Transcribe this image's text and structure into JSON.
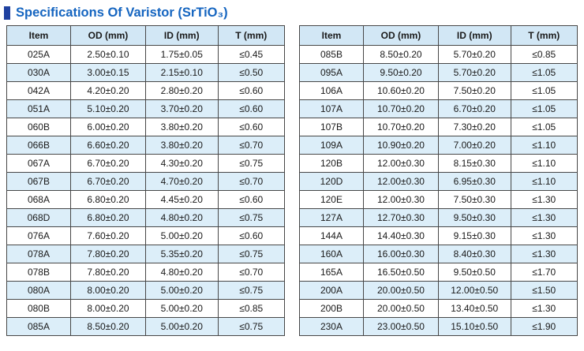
{
  "page": {
    "title": "Specifications Of Varistor (SrTiO₃)"
  },
  "columns": [
    "Item",
    "OD (mm)",
    "ID (mm)",
    "T (mm)"
  ],
  "tables": [
    {
      "name": "left",
      "rows": [
        [
          "025A",
          "2.50±0.10",
          "1.75±0.05",
          "≤0.45"
        ],
        [
          "030A",
          "3.00±0.15",
          "2.15±0.10",
          "≤0.50"
        ],
        [
          "042A",
          "4.20±0.20",
          "2.80±0.20",
          "≤0.60"
        ],
        [
          "051A",
          "5.10±0.20",
          "3.70±0.20",
          "≤0.60"
        ],
        [
          "060B",
          "6.00±0.20",
          "3.80±0.20",
          "≤0.60"
        ],
        [
          "066B",
          "6.60±0.20",
          "3.80±0.20",
          "≤0.70"
        ],
        [
          "067A",
          "6.70±0.20",
          "4.30±0.20",
          "≤0.75"
        ],
        [
          "067B",
          "6.70±0.20",
          "4.70±0.20",
          "≤0.70"
        ],
        [
          "068A",
          "6.80±0.20",
          "4.45±0.20",
          "≤0.60"
        ],
        [
          "068D",
          "6.80±0.20",
          "4.80±0.20",
          "≤0.75"
        ],
        [
          "076A",
          "7.60±0.20",
          "5.00±0.20",
          "≤0.60"
        ],
        [
          "078A",
          "7.80±0.20",
          "5.35±0.20",
          "≤0.75"
        ],
        [
          "078B",
          "7.80±0.20",
          "4.80±0.20",
          "≤0.70"
        ],
        [
          "080A",
          "8.00±0.20",
          "5.00±0.20",
          "≤0.75"
        ],
        [
          "080B",
          "8.00±0.20",
          "5.00±0.20",
          "≤0.85"
        ],
        [
          "085A",
          "8.50±0.20",
          "5.00±0.20",
          "≤0.75"
        ]
      ]
    },
    {
      "name": "right",
      "rows": [
        [
          "085B",
          "8.50±0.20",
          "5.70±0.20",
          "≤0.85"
        ],
        [
          "095A",
          "9.50±0.20",
          "5.70±0.20",
          "≤1.05"
        ],
        [
          "106A",
          "10.60±0.20",
          "7.50±0.20",
          "≤1.05"
        ],
        [
          "107A",
          "10.70±0.20",
          "6.70±0.20",
          "≤1.05"
        ],
        [
          "107B",
          "10.70±0.20",
          "7.30±0.20",
          "≤1.05"
        ],
        [
          "109A",
          "10.90±0.20",
          "7.00±0.20",
          "≤1.10"
        ],
        [
          "120B",
          "12.00±0.30",
          "8.15±0.30",
          "≤1.10"
        ],
        [
          "120D",
          "12.00±0.30",
          "6.95±0.30",
          "≤1.10"
        ],
        [
          "120E",
          "12.00±0.30",
          "7.50±0.30",
          "≤1.30"
        ],
        [
          "127A",
          "12.70±0.30",
          "9.50±0.30",
          "≤1.30"
        ],
        [
          "144A",
          "14.40±0.30",
          "9.15±0.30",
          "≤1.30"
        ],
        [
          "160A",
          "16.00±0.30",
          "8.40±0.30",
          "≤1.30"
        ],
        [
          "165A",
          "16.50±0.50",
          "9.50±0.50",
          "≤1.70"
        ],
        [
          "200A",
          "20.00±0.50",
          "12.00±0.50",
          "≤1.50"
        ],
        [
          "200B",
          "20.00±0.50",
          "13.40±0.50",
          "≤1.30"
        ],
        [
          "230A",
          "23.00±0.50",
          "15.10±0.50",
          "≤1.90"
        ]
      ]
    }
  ],
  "colors": {
    "title_text": "#1565c0",
    "title_bullet": "#1f41a0",
    "header_bg": "#d2e7f5",
    "stripe_bg": "#dceef9",
    "border": "#474747",
    "body_text": "#1a1a1a"
  }
}
